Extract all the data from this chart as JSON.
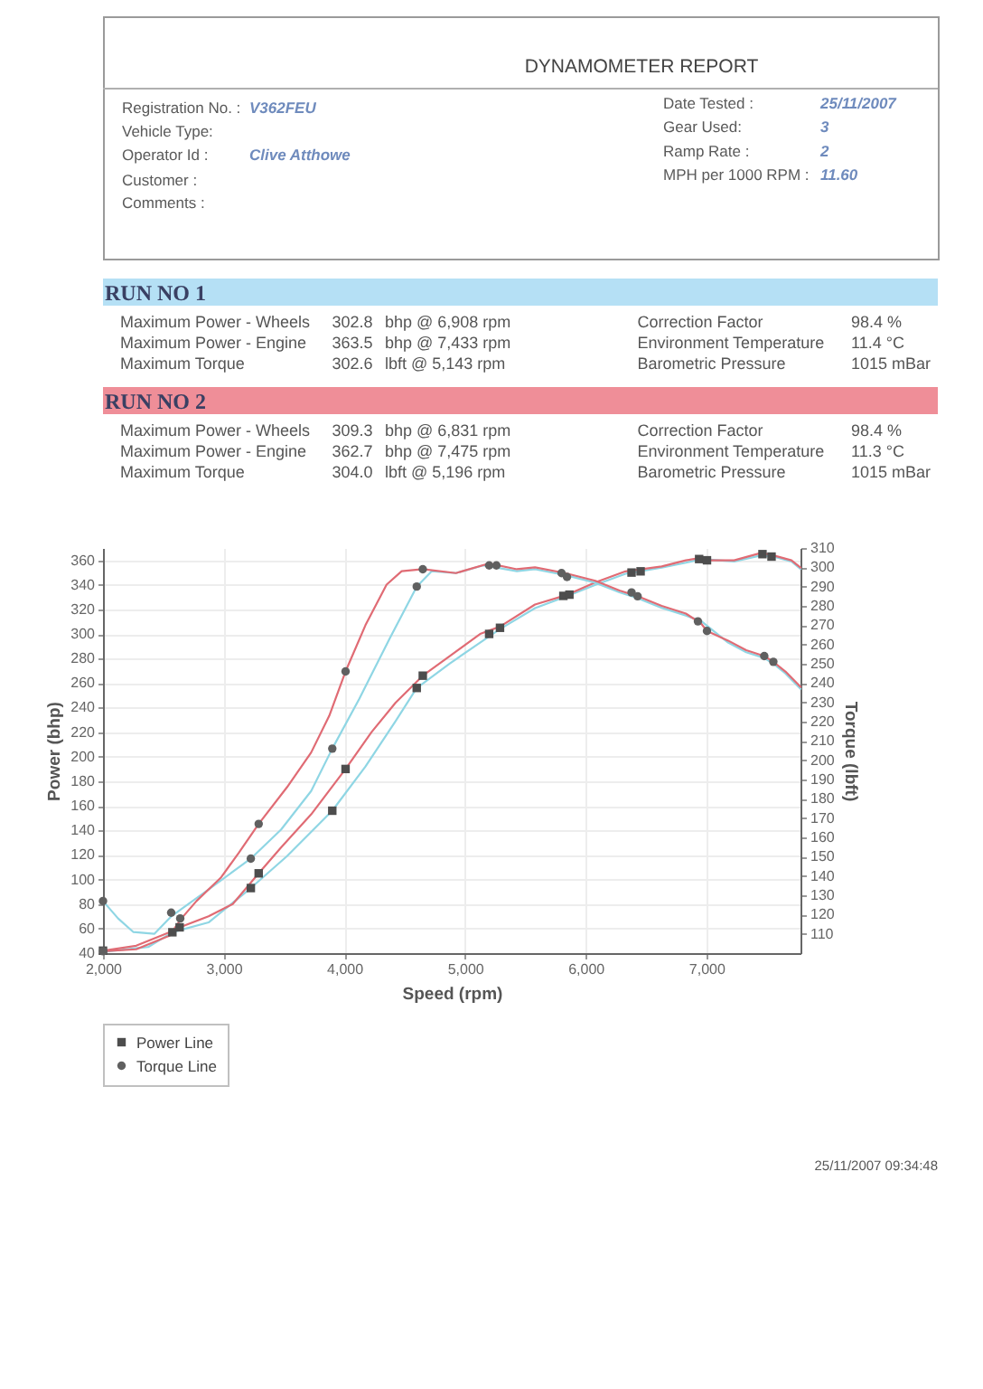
{
  "chart_data": [
    {
      "type": "other",
      "title": "DYNAMOMETER REPORT",
      "annotations": [
        "Registration No. :",
        "V362FEU",
        "Vehicle Type:",
        "Operator Id :",
        "Clive Atthowe",
        "Customer :",
        "Comments :",
        "Date Tested :",
        "25/11/2007",
        "Gear Used:",
        "3",
        "Ramp Rate :",
        "2",
        "MPH per 1000 RPM :",
        "11.60"
      ]
    },
    {
      "type": "other",
      "title": "RUN NO 1",
      "color": "#b5e0f5",
      "annotations": [
        "Maximum Power - Wheels",
        "302.8",
        "bhp @ 6,908 rpm",
        "Maximum Power - Engine",
        "363.5",
        "bhp @ 7,433 rpm",
        "Maximum Torque",
        "302.6",
        "lbft @ 5,143 rpm",
        "Correction Factor",
        "98.4 %",
        "Environment Temperature",
        "11.4 °C",
        "Barometric Pressure",
        "1015 mBar"
      ]
    },
    {
      "type": "other",
      "title": "RUN NO 2",
      "color": "#ef8e98",
      "annotations": [
        "Maximum Power - Wheels",
        "309.3",
        "bhp @ 6,831 rpm",
        "Maximum Power - Engine",
        "362.7",
        "bhp @ 7,475 rpm",
        "Maximum Torque",
        "304.0",
        "lbft @ 5,196 rpm",
        "Correction Factor",
        "98.4 %",
        "Environment Temperature",
        "11.3 °C",
        "Barometric Pressure",
        "1015 mBar"
      ]
    },
    {
      "type": "line",
      "xlabel": "Speed (rpm)",
      "ylabel": "Power (bhp)",
      "y2label": "Torque (lbft)",
      "xlim": [
        2000,
        7780
      ],
      "xticks": [
        {
          "value": 2000,
          "label": "2,000"
        },
        {
          "value": 3000,
          "label": "3,000"
        },
        {
          "value": 4000,
          "label": "4,000"
        },
        {
          "value": 5000,
          "label": "5,000"
        },
        {
          "value": 6000,
          "label": "6,000"
        },
        {
          "value": 7000,
          "label": "7,000"
        }
      ],
      "ylim": [
        40,
        370
      ],
      "yticks": [
        40,
        60,
        80,
        100,
        120,
        140,
        160,
        180,
        200,
        220,
        240,
        260,
        280,
        300,
        320,
        340,
        360
      ],
      "y2lim": [
        100,
        310
      ],
      "y2ticks": [
        110,
        120,
        130,
        140,
        150,
        160,
        170,
        180,
        190,
        200,
        210,
        220,
        230,
        240,
        250,
        260,
        270,
        280,
        290,
        300,
        310
      ],
      "grid": true,
      "legend": "bottom",
      "line_style": "solid",
      "series": [
        {
          "color": "#8fd6e4",
          "x": [
            2000,
            2375,
            2575,
            2875,
            3225,
            3525,
            3900,
            4175,
            4425,
            4600,
            4875,
            5125,
            5290,
            5580,
            5850,
            6080,
            6330,
            6630,
            6830,
            6955,
            7230,
            7455,
            7555,
            7705,
            7780
          ],
          "values": [
            41,
            45,
            57,
            65,
            93,
            119,
            156,
            192,
            229,
            256,
            276,
            293,
            304,
            321,
            331,
            340,
            349,
            354,
            358,
            361,
            359,
            364,
            363,
            359,
            353
          ]
        },
        {
          "color": "#e06b74",
          "x": [
            2000,
            2275,
            2550,
            2635,
            2875,
            3075,
            3290,
            3475,
            3725,
            4010,
            4225,
            4425,
            4650,
            4875,
            5125,
            5290,
            5580,
            5850,
            6080,
            6330,
            6630,
            6830,
            6955,
            7030,
            7230,
            7455,
            7555,
            7705,
            7780
          ],
          "values": [
            42,
            46,
            57,
            61,
            70,
            80,
            105,
            126,
            153,
            190,
            220,
            244,
            266,
            282,
            300,
            306,
            324,
            332,
            342,
            351,
            355,
            360,
            362,
            360,
            360,
            366,
            364,
            360,
            354
          ]
        },
        {
          "axis": "y2",
          "color": "#8fd6e4",
          "x": [
            2000,
            2125,
            2250,
            2425,
            2565,
            2875,
            3225,
            3475,
            3725,
            3900,
            4125,
            4375,
            4600,
            4725,
            4925,
            5150,
            5430,
            5580,
            5830,
            6080,
            6280,
            6430,
            6630,
            6830,
            6960,
            7180,
            7330,
            7480,
            7555,
            7655,
            7780
          ],
          "values": [
            127,
            118,
            111,
            110,
            119,
            133,
            149,
            164,
            184,
            206,
            232,
            263,
            290,
            298,
            297,
            301,
            298,
            299,
            296,
            292,
            287,
            284,
            279,
            275,
            272,
            261,
            256,
            253,
            250,
            245,
            237
          ]
        },
        {
          "axis": "y2",
          "color": "#e06b74",
          "x": [
            2000,
            2275,
            2550,
            2650,
            2775,
            2975,
            3125,
            3290,
            3525,
            3725,
            3875,
            4010,
            4175,
            4350,
            4475,
            4650,
            4925,
            5200,
            5430,
            5580,
            5830,
            6080,
            6280,
            6430,
            6630,
            6830,
            6955,
            7005,
            7180,
            7330,
            7480,
            7555,
            7655,
            7780
          ],
          "values": [
            101,
            102,
            109,
            118,
            127,
            139,
            152,
            167,
            186,
            204,
            223,
            246,
            270,
            291,
            298,
            299,
            297,
            302,
            299,
            300,
            297,
            293,
            288,
            285,
            280,
            276,
            271,
            267,
            262,
            257,
            254,
            251,
            246,
            238
          ]
        },
        {
          "name": "Power Line",
          "type": "scatter",
          "marker": "square",
          "color": "#4d4d4d",
          "x": [
            2000,
            2575,
            2635,
            3225,
            3290,
            3900,
            4010,
            4600,
            4650,
            5200,
            5290,
            5815,
            5865,
            6380,
            6455,
            6940,
            7005,
            7465,
            7540
          ],
          "values": [
            42,
            57,
            61,
            93,
            105,
            156,
            190,
            256,
            266,
            300,
            305,
            331,
            332,
            350,
            351,
            361,
            360,
            365,
            363
          ]
        },
        {
          "name": "Torque Line",
          "type": "scatter",
          "marker": "circle",
          "axis": "y2",
          "color": "#606060",
          "x": [
            2000,
            2000,
            2565,
            2640,
            3225,
            3290,
            3900,
            4010,
            4600,
            4650,
            5200,
            5260,
            5800,
            5845,
            6380,
            6430,
            6930,
            7005,
            7480,
            7555
          ],
          "values": [
            127,
            101,
            121,
            118,
            149,
            167,
            206,
            246,
            290,
            299,
            301,
            301,
            297,
            295,
            287,
            285,
            272,
            267,
            254,
            251
          ]
        }
      ],
      "annotations": [
        "25/11/2007 09:34:48"
      ]
    }
  ]
}
